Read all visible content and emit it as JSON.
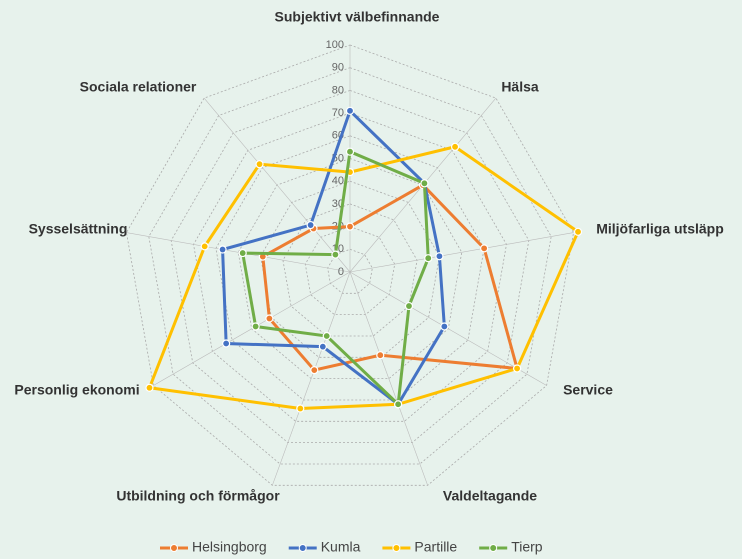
{
  "chart_data": {
    "type": "radar",
    "categories": [
      "Subjektivt välbefinnande",
      "Hälsa",
      "Miljöfarliga utsläpp",
      "Service",
      "Valdeltagande",
      "Utbildning och förmågor",
      "Personlig ekonomi",
      "Sysselsättning",
      "Sociala relationer"
    ],
    "series": [
      {
        "name": "Helsingborg",
        "color": "#ed7d31",
        "values": [
          20,
          50,
          60,
          85,
          39,
          46,
          41,
          39,
          25
        ]
      },
      {
        "name": "Kumla",
        "color": "#4472c4",
        "values": [
          71,
          51,
          40,
          48,
          62,
          35,
          63,
          57,
          27
        ]
      },
      {
        "name": "Partille",
        "color": "#ffc000",
        "values": [
          44,
          72,
          102,
          85,
          62,
          64,
          102,
          65,
          62
        ]
      },
      {
        "name": "Tierp",
        "color": "#70ad47",
        "values": [
          53,
          51,
          35,
          30,
          62,
          30,
          48,
          48,
          10
        ]
      }
    ],
    "ylim": [
      0,
      100
    ],
    "yticks": [
      0,
      10,
      20,
      30,
      40,
      50,
      60,
      70,
      80,
      90,
      100
    ],
    "grid": true,
    "legend": "bottom"
  }
}
